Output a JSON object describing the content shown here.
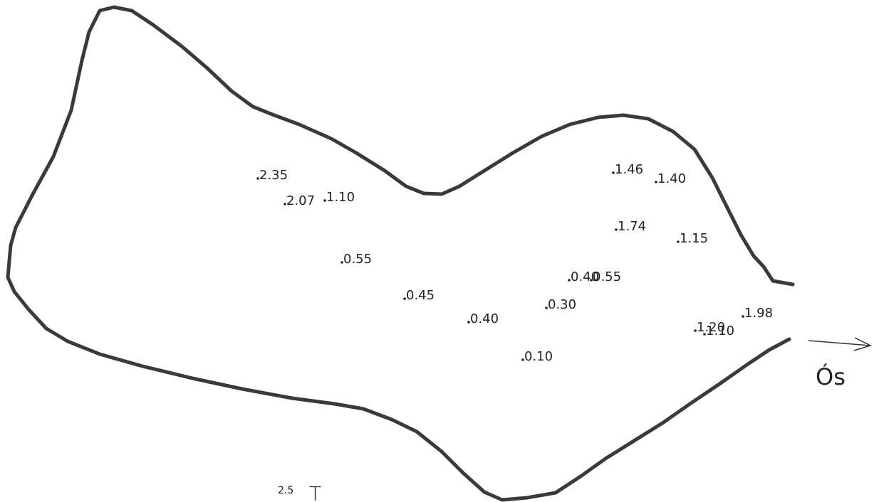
{
  "points": [
    {
      "label": "2.35"
    },
    {
      "label": "2.07"
    },
    {
      "label": "1.10"
    },
    {
      "label": "0.55"
    },
    {
      "label": "0.45"
    },
    {
      "label": "0.40"
    },
    {
      "label": "0.10"
    },
    {
      "label": "0.30"
    },
    {
      "label": "0.40"
    },
    {
      "label": "0.55"
    },
    {
      "label": "1.46"
    },
    {
      "label": "1.40"
    },
    {
      "label": "1.74"
    },
    {
      "label": "1.15"
    },
    {
      "label": "1.20"
    },
    {
      "label": "1.10"
    },
    {
      "label": "1.98"
    }
  ],
  "outlet": {
    "label": "Ós"
  },
  "scale": {
    "value": "2.5",
    "symbol": "T"
  }
}
